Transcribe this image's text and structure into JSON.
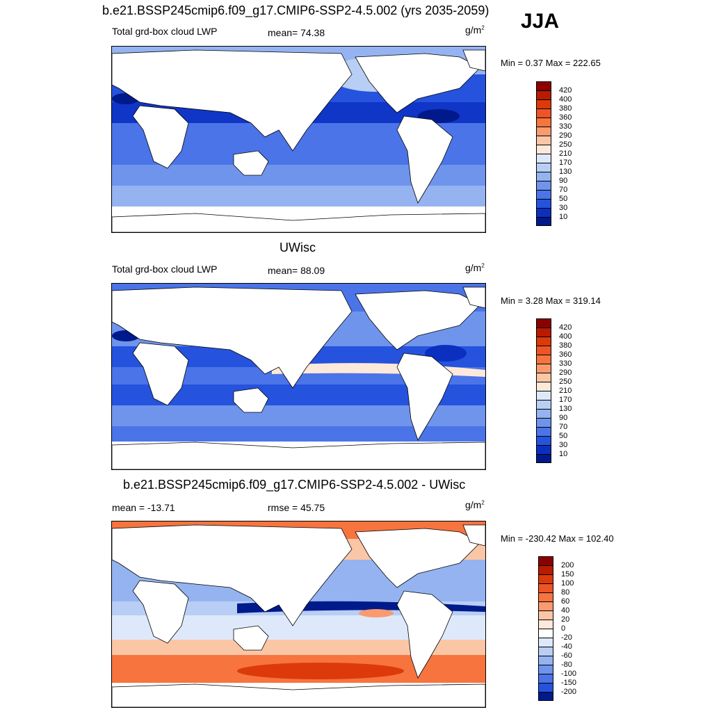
{
  "season": "JJA",
  "panels": [
    {
      "id": "model",
      "title": "b.e21.BSSP245cmip6.f09_g17.CMIP6-SSP2-4.5.002 (yrs 2035-2059)",
      "left_label": "Total grd-box cloud LWP",
      "center_label": "mean=  74.38",
      "units": "g/m",
      "units_sup": "2",
      "minmax": "Min =   0.37 Max = 222.65",
      "colorbar": {
        "labels": [
          "420",
          "400",
          "380",
          "360",
          "330",
          "290",
          "250",
          "210",
          "170",
          "130",
          "90",
          "70",
          "50",
          "30",
          "10"
        ],
        "colors": [
          "#8b0000",
          "#b81b00",
          "#dc3a0b",
          "#ee5525",
          "#f7743f",
          "#f99b6e",
          "#fbc6a5",
          "#fde9d9",
          "#dde9fb",
          "#b8cef5",
          "#94b3f0",
          "#6f94ec",
          "#4a74e8",
          "#2553de",
          "#0b30c0",
          "#001a8c"
        ]
      }
    },
    {
      "id": "obs",
      "title": "UWisc",
      "left_label": "Total grd-box cloud LWP",
      "center_label": "mean=  88.09",
      "units": "g/m",
      "units_sup": "2",
      "minmax": "Min =   3.28 Max = 319.14",
      "colorbar": {
        "labels": [
          "420",
          "400",
          "380",
          "360",
          "330",
          "290",
          "250",
          "210",
          "170",
          "130",
          "90",
          "70",
          "50",
          "30",
          "10"
        ],
        "colors": [
          "#8b0000",
          "#b81b00",
          "#dc3a0b",
          "#ee5525",
          "#f7743f",
          "#f99b6e",
          "#fbc6a5",
          "#fde9d9",
          "#dde9fb",
          "#b8cef5",
          "#94b3f0",
          "#6f94ec",
          "#4a74e8",
          "#2553de",
          "#0b30c0",
          "#001a8c"
        ]
      }
    },
    {
      "id": "diff",
      "title": "b.e21.BSSP245cmip6.f09_g17.CMIP6-SSP2-4.5.002 - UWisc",
      "left_label": "mean = -13.71",
      "center_label": "rmse =  45.75",
      "units": "g/m",
      "units_sup": "2",
      "minmax": "Min = -230.42 Max = 102.40",
      "colorbar": {
        "labels": [
          "200",
          "150",
          "100",
          "80",
          "60",
          "40",
          "20",
          "0",
          "-20",
          "-40",
          "-60",
          "-80",
          "-100",
          "-150",
          "-200"
        ],
        "colors": [
          "#8b0000",
          "#b81b00",
          "#dc3a0b",
          "#ee5525",
          "#f7743f",
          "#f99b6e",
          "#fbc6a5",
          "#fde9d9",
          "#ffffff",
          "#dde9fb",
          "#b8cef5",
          "#94b3f0",
          "#6f94ec",
          "#4a74e8",
          "#2553de",
          "#001a8c"
        ]
      }
    }
  ]
}
